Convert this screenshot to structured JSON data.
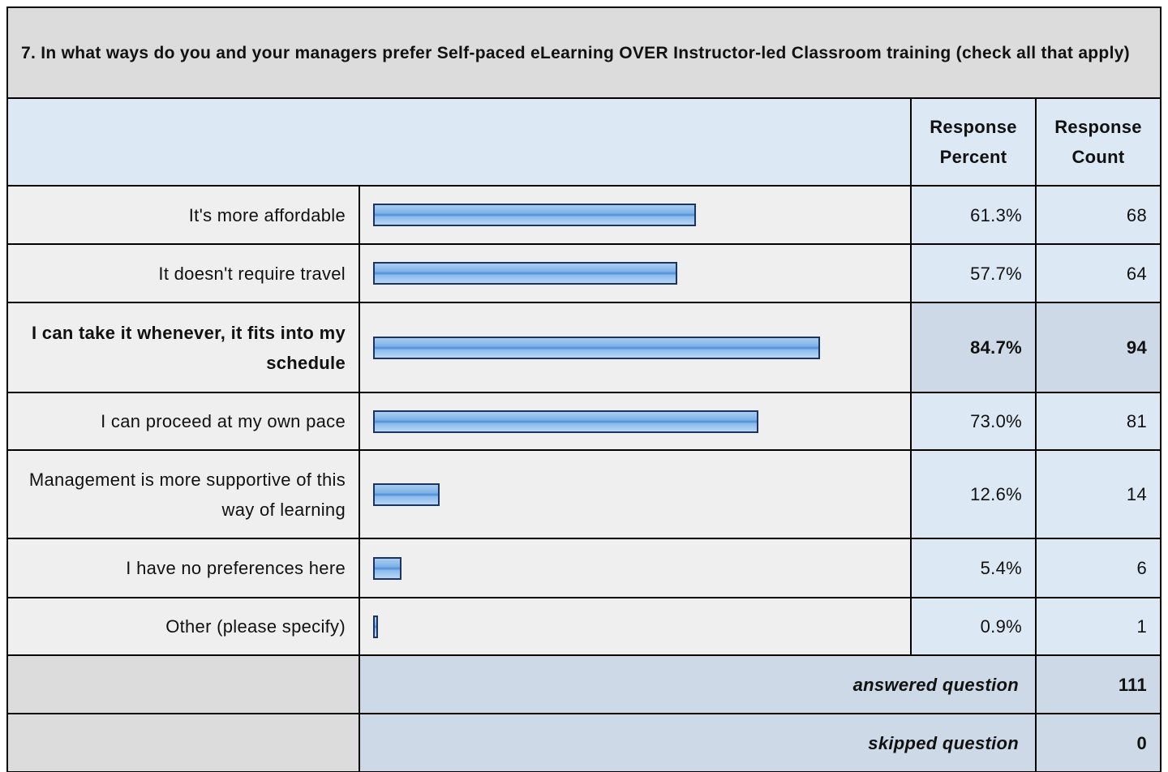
{
  "question": {
    "title": "7. In what ways do you and your managers prefer Self-paced eLearning OVER Instructor-led Classroom training (check all that apply)"
  },
  "header": {
    "percent": "Response Percent",
    "count": "Response Count"
  },
  "rows": [
    {
      "label": "It's more affordable",
      "percent": 61.3,
      "percent_label": "61.3%",
      "count": 68
    },
    {
      "label": "It doesn't require travel",
      "percent": 57.7,
      "percent_label": "57.7%",
      "count": 64
    },
    {
      "label": "I can take it whenever, it fits into my schedule",
      "percent": 84.7,
      "percent_label": "84.7%",
      "count": 94
    },
    {
      "label": "I can proceed at my own pace",
      "percent": 73.0,
      "percent_label": "73.0%",
      "count": 81
    },
    {
      "label": "Management is more supportive of this way of learning",
      "percent": 12.6,
      "percent_label": "12.6%",
      "count": 14
    },
    {
      "label": "I have no preferences here",
      "percent": 5.4,
      "percent_label": "5.4%",
      "count": 6
    },
    {
      "label": "Other (please specify)",
      "percent": 0.9,
      "percent_label": "0.9%",
      "count": 1
    }
  ],
  "footer": [
    {
      "label": "answered question",
      "count": 111
    },
    {
      "label": "skipped question",
      "count": 0
    }
  ]
}
